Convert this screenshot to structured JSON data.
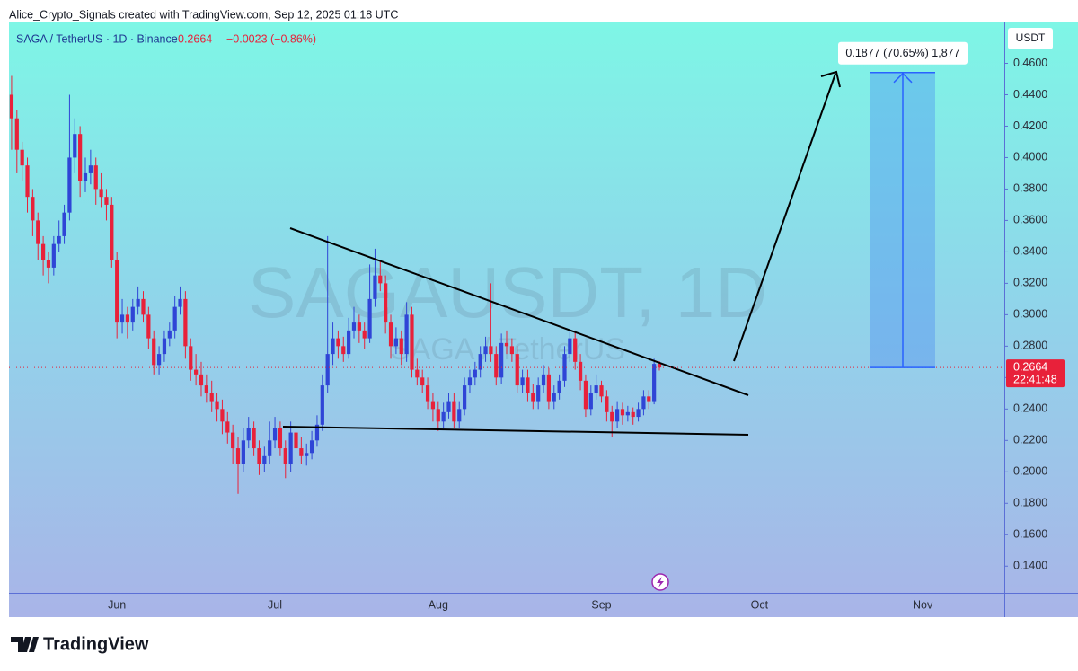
{
  "attribution": "Alice_Crypto_Signals created with TradingView.com, Sep 12, 2025 01:18 UTC",
  "footer": {
    "brand": "TradingView"
  },
  "chart_data": {
    "type": "candlestick",
    "title": "SAGA / TetherUS · 1D · Binance",
    "last_price": 0.2664,
    "change_label": "−0.0023 (−0.86%)",
    "countdown": "22:41:48",
    "currency": "USDT",
    "watermark": {
      "symbol": "SAGAUSDT, 1D",
      "description": "SAGA / TetherUS"
    },
    "up_color": "#2f45d6",
    "down_color": "#e8213a",
    "measure": {
      "label": "0.1877 (70.65%) 1,877",
      "change": 0.1877
    },
    "ylim": [
      0.123,
      0.486
    ],
    "yticks": [
      {
        "value": 0.14,
        "label": "0.1400"
      },
      {
        "value": 0.16,
        "label": "0.1600"
      },
      {
        "value": 0.18,
        "label": "0.1800"
      },
      {
        "value": 0.2,
        "label": "0.2000"
      },
      {
        "value": 0.22,
        "label": "0.2200"
      },
      {
        "value": 0.24,
        "label": "0.2400"
      },
      {
        "value": 0.26,
        "label": "0.2600"
      },
      {
        "value": 0.28,
        "label": "0.2800"
      },
      {
        "value": 0.3,
        "label": "0.3000"
      },
      {
        "value": 0.32,
        "label": "0.3200"
      },
      {
        "value": 0.34,
        "label": "0.3400"
      },
      {
        "value": 0.36,
        "label": "0.3600"
      },
      {
        "value": 0.38,
        "label": "0.3800"
      },
      {
        "value": 0.4,
        "label": "0.4000"
      },
      {
        "value": 0.42,
        "label": "0.4200"
      },
      {
        "value": 0.44,
        "label": "0.4400"
      },
      {
        "value": 0.46,
        "label": "0.4600"
      }
    ],
    "categories": [
      null,
      null,
      null,
      null,
      null,
      null,
      null,
      null,
      null,
      null,
      null,
      null,
      null,
      null,
      null,
      null,
      null,
      null,
      null,
      null,
      "Jun",
      null,
      null,
      null,
      null,
      null,
      null,
      null,
      null,
      null,
      null,
      null,
      null,
      null,
      null,
      null,
      null,
      null,
      null,
      null,
      null,
      null,
      null,
      null,
      null,
      null,
      null,
      null,
      null,
      null,
      "Jul",
      null,
      null,
      null,
      null,
      null,
      null,
      null,
      null,
      null,
      null,
      null,
      null,
      null,
      null,
      null,
      null,
      null,
      null,
      null,
      null,
      null,
      null,
      null,
      null,
      null,
      null,
      null,
      null,
      null,
      null,
      "Aug",
      null,
      null,
      null,
      null,
      null,
      null,
      null,
      null,
      null,
      null,
      null,
      null,
      null,
      null,
      null,
      null,
      null,
      null,
      null,
      null,
      null,
      null,
      null,
      null,
      null,
      null,
      null,
      null,
      null,
      null,
      "Sep",
      null,
      null,
      null,
      null,
      null,
      null,
      null,
      null,
      null,
      null,
      null,
      null,
      null,
      null,
      null,
      null,
      null,
      null,
      null,
      null,
      null,
      null,
      null,
      null,
      null,
      null,
      null,
      null,
      null,
      "Oct",
      null,
      null,
      null,
      null,
      null,
      null,
      null,
      null,
      null,
      null,
      null,
      null,
      null,
      null,
      null,
      null,
      null,
      null,
      null,
      null,
      null,
      null,
      null,
      null,
      null,
      null,
      null,
      null,
      null,
      null,
      "Nov",
      null,
      null,
      null,
      null,
      null,
      null,
      null,
      null,
      null,
      null,
      null,
      null,
      null,
      null,
      null
    ],
    "ohlc": [
      [
        0.44,
        0.452,
        0.405,
        0.425
      ],
      [
        0.425,
        0.43,
        0.39,
        0.405
      ],
      [
        0.405,
        0.41,
        0.385,
        0.395
      ],
      [
        0.395,
        0.4,
        0.365,
        0.375
      ],
      [
        0.375,
        0.38,
        0.35,
        0.36
      ],
      [
        0.36,
        0.365,
        0.335,
        0.345
      ],
      [
        0.345,
        0.35,
        0.325,
        0.335
      ],
      [
        0.335,
        0.34,
        0.32,
        0.33
      ],
      [
        0.33,
        0.35,
        0.325,
        0.345
      ],
      [
        0.345,
        0.36,
        0.34,
        0.35
      ],
      [
        0.35,
        0.37,
        0.345,
        0.365
      ],
      [
        0.365,
        0.44,
        0.36,
        0.4
      ],
      [
        0.4,
        0.425,
        0.39,
        0.415
      ],
      [
        0.415,
        0.42,
        0.375,
        0.385
      ],
      [
        0.385,
        0.4,
        0.378,
        0.39
      ],
      [
        0.39,
        0.405,
        0.383,
        0.395
      ],
      [
        0.395,
        0.4,
        0.37,
        0.38
      ],
      [
        0.38,
        0.39,
        0.368,
        0.375
      ],
      [
        0.375,
        0.38,
        0.36,
        0.37
      ],
      [
        0.37,
        0.375,
        0.33,
        0.335
      ],
      [
        0.335,
        0.34,
        0.285,
        0.295
      ],
      [
        0.295,
        0.31,
        0.288,
        0.3
      ],
      [
        0.3,
        0.305,
        0.285,
        0.295
      ],
      [
        0.295,
        0.31,
        0.29,
        0.305
      ],
      [
        0.305,
        0.318,
        0.3,
        0.31
      ],
      [
        0.31,
        0.315,
        0.295,
        0.3
      ],
      [
        0.3,
        0.305,
        0.278,
        0.285
      ],
      [
        0.285,
        0.29,
        0.262,
        0.268
      ],
      [
        0.268,
        0.28,
        0.262,
        0.275
      ],
      [
        0.275,
        0.29,
        0.27,
        0.285
      ],
      [
        0.285,
        0.295,
        0.28,
        0.29
      ],
      [
        0.29,
        0.312,
        0.285,
        0.305
      ],
      [
        0.305,
        0.318,
        0.3,
        0.31
      ],
      [
        0.31,
        0.315,
        0.272,
        0.28
      ],
      [
        0.28,
        0.285,
        0.258,
        0.265
      ],
      [
        0.265,
        0.275,
        0.255,
        0.262
      ],
      [
        0.262,
        0.27,
        0.248,
        0.255
      ],
      [
        0.255,
        0.262,
        0.244,
        0.25
      ],
      [
        0.25,
        0.258,
        0.238,
        0.245
      ],
      [
        0.245,
        0.25,
        0.232,
        0.24
      ],
      [
        0.24,
        0.246,
        0.224,
        0.232
      ],
      [
        0.232,
        0.238,
        0.218,
        0.225
      ],
      [
        0.225,
        0.23,
        0.205,
        0.215
      ],
      [
        0.215,
        0.222,
        0.186,
        0.205
      ],
      [
        0.205,
        0.228,
        0.2,
        0.22
      ],
      [
        0.22,
        0.235,
        0.215,
        0.228
      ],
      [
        0.228,
        0.232,
        0.21,
        0.215
      ],
      [
        0.215,
        0.22,
        0.198,
        0.205
      ],
      [
        0.205,
        0.216,
        0.2,
        0.21
      ],
      [
        0.21,
        0.232,
        0.205,
        0.22
      ],
      [
        0.22,
        0.235,
        0.215,
        0.228
      ],
      [
        0.228,
        0.232,
        0.21,
        0.215
      ],
      [
        0.215,
        0.22,
        0.196,
        0.205
      ],
      [
        0.205,
        0.232,
        0.2,
        0.225
      ],
      [
        0.225,
        0.23,
        0.21,
        0.215
      ],
      [
        0.215,
        0.222,
        0.205,
        0.21
      ],
      [
        0.21,
        0.218,
        0.204,
        0.212
      ],
      [
        0.212,
        0.226,
        0.208,
        0.22
      ],
      [
        0.22,
        0.236,
        0.216,
        0.23
      ],
      [
        0.23,
        0.262,
        0.226,
        0.255
      ],
      [
        0.255,
        0.35,
        0.25,
        0.275
      ],
      [
        0.275,
        0.295,
        0.268,
        0.285
      ],
      [
        0.285,
        0.29,
        0.272,
        0.28
      ],
      [
        0.28,
        0.286,
        0.27,
        0.275
      ],
      [
        0.275,
        0.298,
        0.272,
        0.29
      ],
      [
        0.29,
        0.305,
        0.285,
        0.295
      ],
      [
        0.295,
        0.3,
        0.282,
        0.29
      ],
      [
        0.29,
        0.295,
        0.278,
        0.285
      ],
      [
        0.285,
        0.332,
        0.282,
        0.31
      ],
      [
        0.31,
        0.342,
        0.305,
        0.325
      ],
      [
        0.325,
        0.335,
        0.315,
        0.32
      ],
      [
        0.32,
        0.325,
        0.288,
        0.295
      ],
      [
        0.295,
        0.3,
        0.272,
        0.28
      ],
      [
        0.28,
        0.292,
        0.275,
        0.285
      ],
      [
        0.285,
        0.29,
        0.268,
        0.275
      ],
      [
        0.275,
        0.308,
        0.27,
        0.3
      ],
      [
        0.3,
        0.305,
        0.26,
        0.265
      ],
      [
        0.265,
        0.272,
        0.255,
        0.26
      ],
      [
        0.26,
        0.265,
        0.25,
        0.255
      ],
      [
        0.255,
        0.26,
        0.24,
        0.245
      ],
      [
        0.245,
        0.25,
        0.232,
        0.24
      ],
      [
        0.24,
        0.245,
        0.226,
        0.232
      ],
      [
        0.232,
        0.244,
        0.228,
        0.238
      ],
      [
        0.238,
        0.25,
        0.234,
        0.245
      ],
      [
        0.245,
        0.25,
        0.228,
        0.232
      ],
      [
        0.232,
        0.245,
        0.228,
        0.24
      ],
      [
        0.24,
        0.26,
        0.236,
        0.255
      ],
      [
        0.255,
        0.265,
        0.25,
        0.26
      ],
      [
        0.26,
        0.27,
        0.255,
        0.265
      ],
      [
        0.265,
        0.28,
        0.26,
        0.275
      ],
      [
        0.275,
        0.286,
        0.27,
        0.28
      ],
      [
        0.28,
        0.32,
        0.27,
        0.275
      ],
      [
        0.275,
        0.28,
        0.255,
        0.26
      ],
      [
        0.26,
        0.288,
        0.256,
        0.282
      ],
      [
        0.282,
        0.29,
        0.275,
        0.28
      ],
      [
        0.28,
        0.285,
        0.27,
        0.275
      ],
      [
        0.275,
        0.28,
        0.25,
        0.255
      ],
      [
        0.255,
        0.265,
        0.25,
        0.26
      ],
      [
        0.26,
        0.265,
        0.245,
        0.25
      ],
      [
        0.25,
        0.256,
        0.24,
        0.245
      ],
      [
        0.245,
        0.26,
        0.24,
        0.255
      ],
      [
        0.255,
        0.268,
        0.25,
        0.262
      ],
      [
        0.262,
        0.266,
        0.24,
        0.245
      ],
      [
        0.245,
        0.255,
        0.24,
        0.25
      ],
      [
        0.25,
        0.262,
        0.246,
        0.258
      ],
      [
        0.258,
        0.28,
        0.254,
        0.275
      ],
      [
        0.275,
        0.29,
        0.27,
        0.285
      ],
      [
        0.285,
        0.29,
        0.265,
        0.27
      ],
      [
        0.27,
        0.275,
        0.252,
        0.258
      ],
      [
        0.258,
        0.262,
        0.235,
        0.24
      ],
      [
        0.24,
        0.255,
        0.236,
        0.25
      ],
      [
        0.25,
        0.262,
        0.246,
        0.255
      ],
      [
        0.255,
        0.258,
        0.244,
        0.248
      ],
      [
        0.248,
        0.252,
        0.232,
        0.238
      ],
      [
        0.238,
        0.242,
        0.222,
        0.232
      ],
      [
        0.232,
        0.245,
        0.228,
        0.24
      ],
      [
        0.24,
        0.244,
        0.23,
        0.236
      ],
      [
        0.236,
        0.242,
        0.232,
        0.238
      ],
      [
        0.238,
        0.241,
        0.23,
        0.235
      ],
      [
        0.235,
        0.244,
        0.232,
        0.24
      ],
      [
        0.24,
        0.252,
        0.236,
        0.248
      ],
      [
        0.248,
        0.252,
        0.24,
        0.245
      ],
      [
        0.245,
        0.272,
        0.243,
        0.2687
      ],
      [
        0.2687,
        0.2705,
        0.2645,
        0.2664
      ],
      null,
      null,
      null,
      null,
      null,
      null,
      null,
      null,
      null,
      null,
      null,
      null,
      null,
      null,
      null,
      null,
      null,
      null,
      null,
      null,
      null,
      null,
      null,
      null,
      null,
      null,
      null,
      null,
      null,
      null,
      null,
      null,
      null,
      null,
      null,
      null,
      null,
      null,
      null,
      null,
      null,
      null,
      null,
      null,
      null,
      null,
      null,
      null,
      null,
      null,
      null,
      null,
      null,
      null,
      null,
      null,
      null,
      null,
      null,
      null,
      null,
      null,
      null,
      null,
      null
    ]
  }
}
